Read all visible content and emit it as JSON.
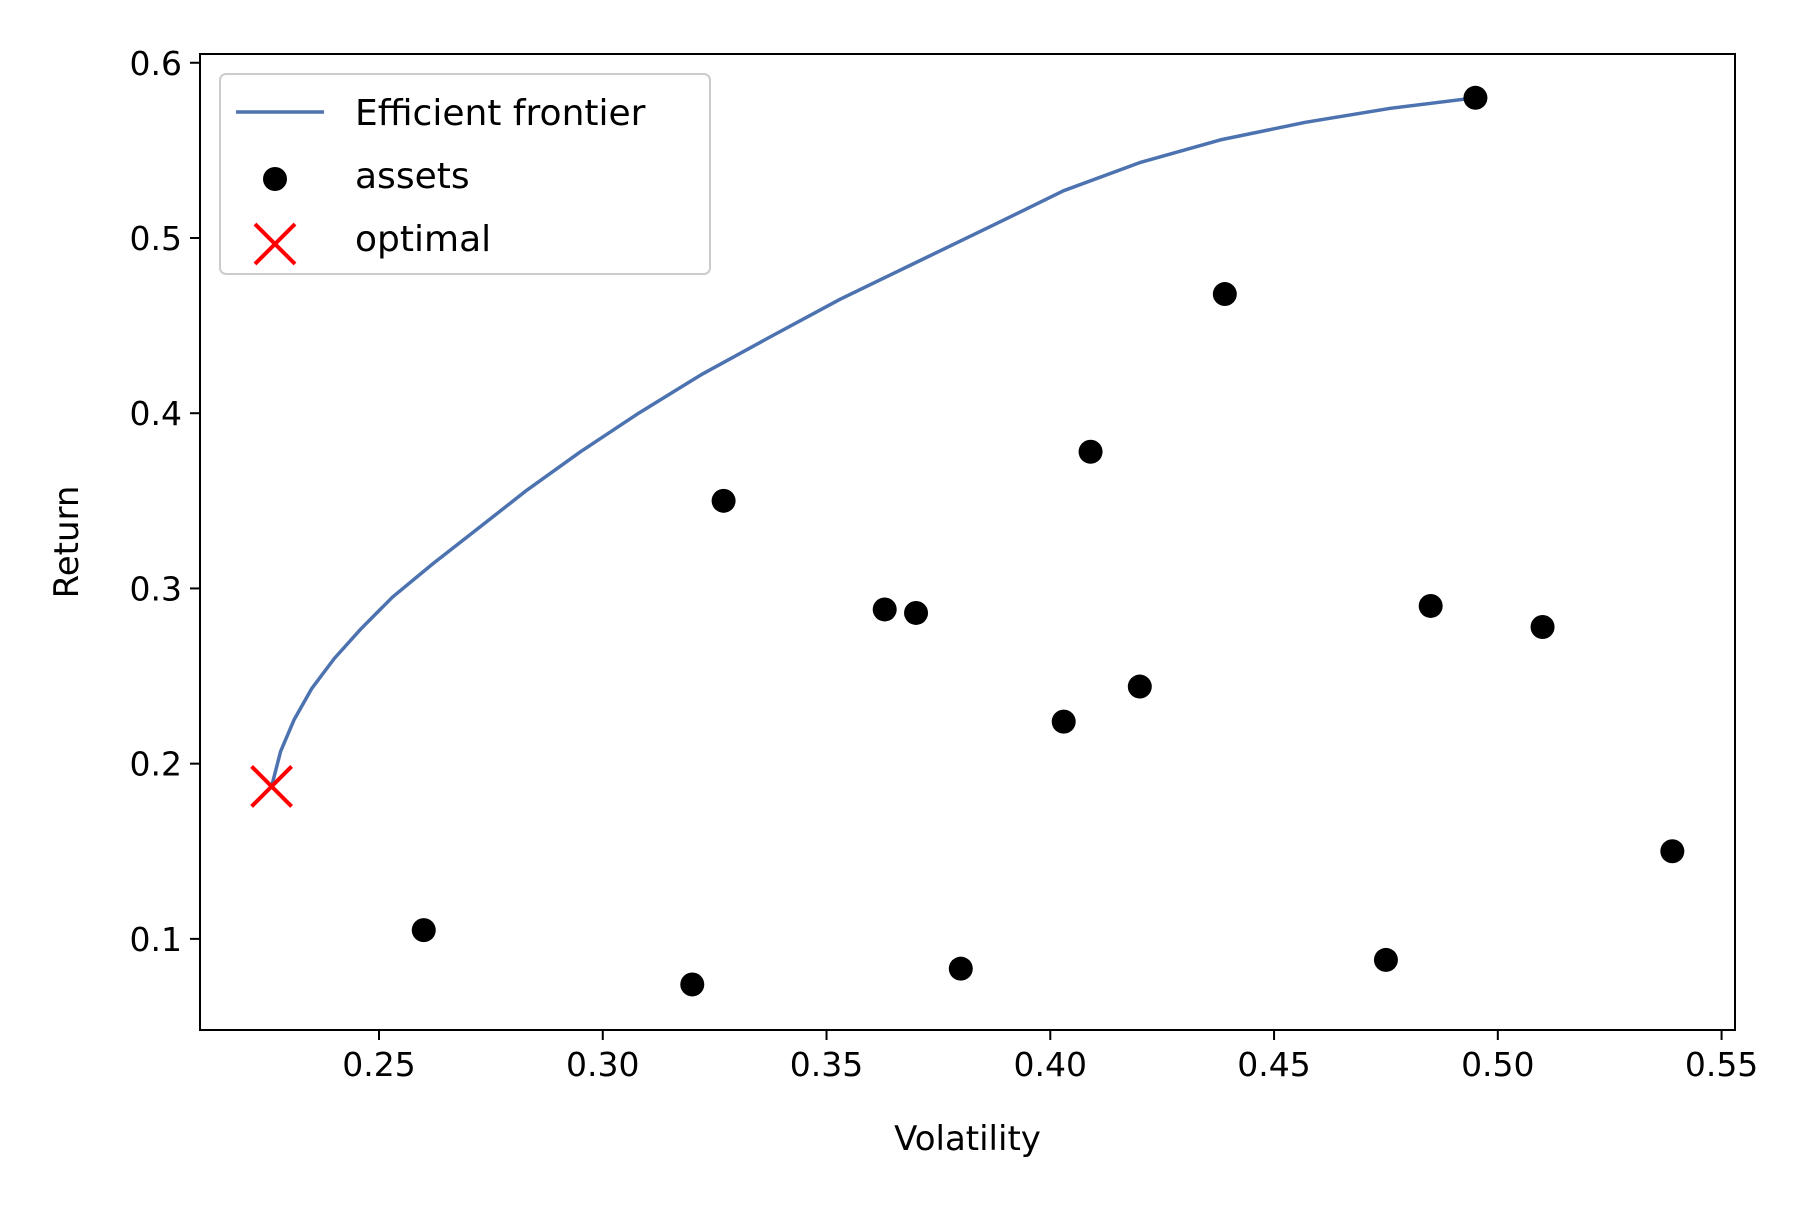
{
  "chart_data": {
    "type": "scatter",
    "title": "",
    "xlabel": "Volatility",
    "ylabel": "Return",
    "xlim": [
      0.21,
      0.553
    ],
    "ylim": [
      0.048,
      0.605
    ],
    "grid": false,
    "legend_position": "top-left",
    "x_ticks": [
      0.25,
      0.3,
      0.35,
      0.4,
      0.45,
      0.5,
      0.55
    ],
    "x_tick_labels": [
      "0.25",
      "0.30",
      "0.35",
      "0.40",
      "0.45",
      "0.50",
      "0.55"
    ],
    "y_ticks": [
      0.1,
      0.2,
      0.3,
      0.4,
      0.5,
      0.6
    ],
    "y_tick_labels": [
      "0.1",
      "0.2",
      "0.3",
      "0.4",
      "0.5",
      "0.6"
    ],
    "series": [
      {
        "name": "Efficient frontier",
        "kind": "line",
        "color": "#4c72b0",
        "points": [
          [
            0.226,
            0.187
          ],
          [
            0.228,
            0.207
          ],
          [
            0.231,
            0.225
          ],
          [
            0.235,
            0.243
          ],
          [
            0.24,
            0.26
          ],
          [
            0.246,
            0.277
          ],
          [
            0.253,
            0.295
          ],
          [
            0.262,
            0.314
          ],
          [
            0.272,
            0.334
          ],
          [
            0.283,
            0.356
          ],
          [
            0.295,
            0.378
          ],
          [
            0.308,
            0.4
          ],
          [
            0.322,
            0.422
          ],
          [
            0.337,
            0.443
          ],
          [
            0.353,
            0.465
          ],
          [
            0.37,
            0.486
          ],
          [
            0.387,
            0.507
          ],
          [
            0.403,
            0.527
          ],
          [
            0.42,
            0.543
          ],
          [
            0.438,
            0.556
          ],
          [
            0.457,
            0.566
          ],
          [
            0.476,
            0.574
          ],
          [
            0.495,
            0.58
          ]
        ]
      },
      {
        "name": "assets",
        "kind": "scatter",
        "color": "#000000",
        "points": [
          [
            0.495,
            0.58
          ],
          [
            0.439,
            0.468
          ],
          [
            0.409,
            0.378
          ],
          [
            0.327,
            0.35
          ],
          [
            0.363,
            0.288
          ],
          [
            0.37,
            0.286
          ],
          [
            0.485,
            0.29
          ],
          [
            0.51,
            0.278
          ],
          [
            0.42,
            0.244
          ],
          [
            0.403,
            0.224
          ],
          [
            0.539,
            0.15
          ],
          [
            0.26,
            0.105
          ],
          [
            0.32,
            0.074
          ],
          [
            0.38,
            0.083
          ],
          [
            0.475,
            0.088
          ]
        ]
      },
      {
        "name": "optimal",
        "kind": "marker-x",
        "color": "#ff0000",
        "points": [
          [
            0.226,
            0.187
          ]
        ]
      }
    ]
  }
}
